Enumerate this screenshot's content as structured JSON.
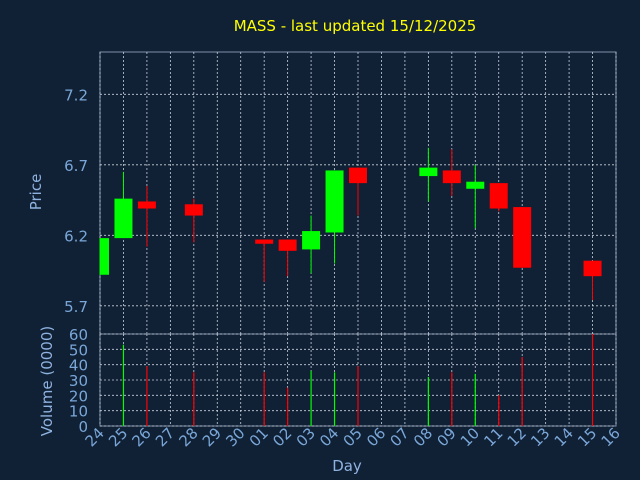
{
  "colors": {
    "background": "#102035",
    "panel_border": "#7f8fa6",
    "grid": "#c8d0dc",
    "title": "#ffff00",
    "axis_text": "#7aa7d8",
    "label_text": "#8fb3e0",
    "up": "#00ff00",
    "down": "#ff0000",
    "wick": "#9aa6b8"
  },
  "chart_data": [
    {
      "type": "candlestick",
      "title": "MASS - last updated 15/12/2025",
      "ylabel": "Price",
      "ylim": [
        5.5,
        7.5
      ],
      "y_ticks": [
        "5.7",
        "6.2",
        "6.7",
        "7.2"
      ],
      "y_tick_values": [
        5.7,
        6.2,
        6.7,
        7.2
      ],
      "grid": true,
      "candles": [
        {
          "day": "24",
          "open": 5.92,
          "close": 6.18,
          "high": 6.18,
          "low": 5.92,
          "dir": "up"
        },
        {
          "day": "25",
          "open": 6.18,
          "close": 6.46,
          "high": 6.65,
          "low": 6.18,
          "dir": "up"
        },
        {
          "day": "26",
          "open": 6.44,
          "close": 6.39,
          "high": 6.55,
          "low": 6.12,
          "dir": "down"
        },
        {
          "day": "28",
          "open": 6.42,
          "close": 6.34,
          "high": 6.46,
          "low": 6.15,
          "dir": "down"
        },
        {
          "day": "01",
          "open": 6.17,
          "close": 6.14,
          "high": 6.17,
          "low": 5.87,
          "dir": "down"
        },
        {
          "day": "02",
          "open": 6.17,
          "close": 6.09,
          "high": 6.17,
          "low": 5.91,
          "dir": "down"
        },
        {
          "day": "03",
          "open": 6.1,
          "close": 6.23,
          "high": 6.34,
          "low": 5.93,
          "dir": "up"
        },
        {
          "day": "04",
          "open": 6.22,
          "close": 6.66,
          "high": 6.66,
          "low": 6.0,
          "dir": "up"
        },
        {
          "day": "05",
          "open": 6.68,
          "close": 6.57,
          "high": 6.68,
          "low": 6.34,
          "dir": "down"
        },
        {
          "day": "08",
          "open": 6.62,
          "close": 6.68,
          "high": 6.82,
          "low": 6.44,
          "dir": "up"
        },
        {
          "day": "09",
          "open": 6.66,
          "close": 6.57,
          "high": 6.81,
          "low": 6.48,
          "dir": "down"
        },
        {
          "day": "10",
          "open": 6.53,
          "close": 6.58,
          "high": 6.7,
          "low": 6.25,
          "dir": "up"
        },
        {
          "day": "11",
          "open": 6.57,
          "close": 6.39,
          "high": 6.57,
          "low": 6.37,
          "dir": "down"
        },
        {
          "day": "12",
          "open": 6.4,
          "close": 5.97,
          "high": 6.4,
          "low": 5.97,
          "dir": "down"
        },
        {
          "day": "15",
          "open": 6.02,
          "close": 5.91,
          "high": 6.02,
          "low": 5.74,
          "dir": "down"
        }
      ]
    },
    {
      "type": "bar",
      "ylabel": "Volume (0000)",
      "xlabel": "Day",
      "ylim": [
        0,
        60
      ],
      "y_ticks": [
        "0",
        "10",
        "20",
        "30",
        "40",
        "50",
        "60"
      ],
      "y_tick_values": [
        0,
        10,
        20,
        30,
        40,
        50,
        60
      ],
      "grid": true,
      "x_ticks": [
        "24",
        "25",
        "26",
        "27",
        "28",
        "29",
        "30",
        "01",
        "02",
        "03",
        "04",
        "05",
        "06",
        "07",
        "08",
        "09",
        "10",
        "11",
        "12",
        "13",
        "14",
        "15",
        "16"
      ],
      "volumes": [
        {
          "day": "25",
          "value": 53,
          "dir": "up"
        },
        {
          "day": "26",
          "value": 39,
          "dir": "down"
        },
        {
          "day": "28",
          "value": 35,
          "dir": "down"
        },
        {
          "day": "01",
          "value": 35,
          "dir": "down"
        },
        {
          "day": "02",
          "value": 25,
          "dir": "down"
        },
        {
          "day": "03",
          "value": 36,
          "dir": "up"
        },
        {
          "day": "04",
          "value": 35,
          "dir": "up"
        },
        {
          "day": "05",
          "value": 39,
          "dir": "down"
        },
        {
          "day": "08",
          "value": 32,
          "dir": "up"
        },
        {
          "day": "09",
          "value": 35,
          "dir": "down"
        },
        {
          "day": "10",
          "value": 34,
          "dir": "up"
        },
        {
          "day": "11",
          "value": 20,
          "dir": "down"
        },
        {
          "day": "12",
          "value": 45,
          "dir": "down"
        },
        {
          "day": "15",
          "value": 60,
          "dir": "down"
        }
      ]
    }
  ]
}
